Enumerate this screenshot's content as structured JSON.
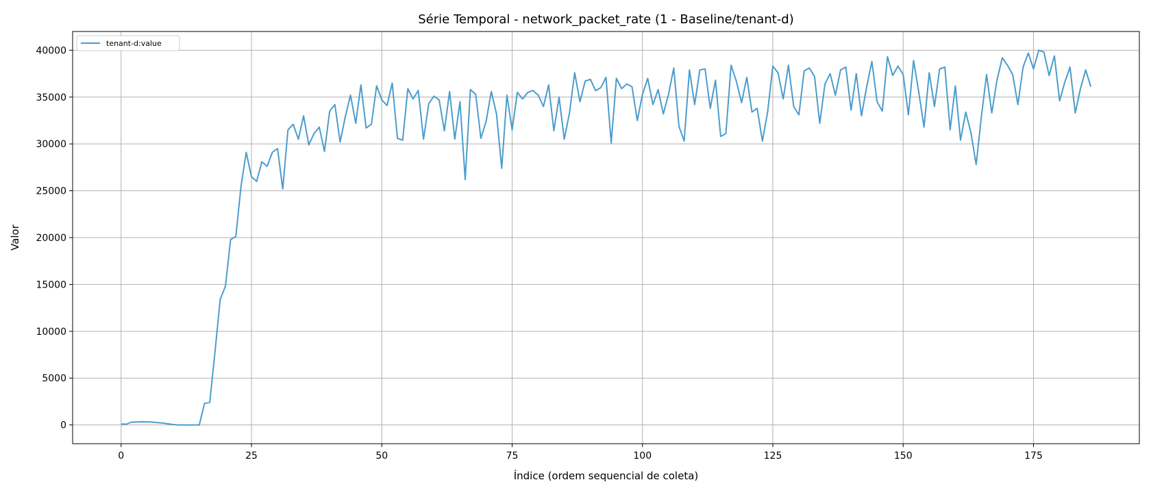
{
  "chart_data": {
    "type": "line",
    "title": "Série Temporal - network_packet_rate (1 - Baseline/tenant-d)",
    "xlabel": "Índice (ordem sequencial de coleta)",
    "ylabel": "Valor",
    "xlim": [
      -9.3,
      195.3
    ],
    "ylim": [
      -2000,
      42000
    ],
    "xticks": [
      0,
      25,
      50,
      75,
      100,
      125,
      150,
      175
    ],
    "yticks": [
      0,
      5000,
      10000,
      15000,
      20000,
      25000,
      30000,
      35000,
      40000
    ],
    "grid": true,
    "legend_position": "top-left",
    "colors": {
      "line": "#4a9ccc",
      "grid": "#b0b0b0"
    },
    "series": [
      {
        "name": "tenant-d:value",
        "x": [
          0,
          1,
          2,
          3,
          4,
          5,
          6,
          7,
          8,
          9,
          10,
          11,
          12,
          13,
          14,
          15,
          16,
          17,
          18,
          19,
          20,
          21,
          22,
          23,
          24,
          25,
          26,
          27,
          28,
          29,
          30,
          31,
          32,
          33,
          34,
          35,
          36,
          37,
          38,
          39,
          40,
          41,
          42,
          43,
          44,
          45,
          46,
          47,
          48,
          49,
          50,
          51,
          52,
          53,
          54,
          55,
          56,
          57,
          58,
          59,
          60,
          61,
          62,
          63,
          64,
          65,
          66,
          67,
          68,
          69,
          70,
          71,
          72,
          73,
          74,
          75,
          76,
          77,
          78,
          79,
          80,
          81,
          82,
          83,
          84,
          85,
          86,
          87,
          88,
          89,
          90,
          91,
          92,
          93,
          94,
          95,
          96,
          97,
          98,
          99,
          100,
          101,
          102,
          103,
          104,
          105,
          106,
          107,
          108,
          109,
          110,
          111,
          112,
          113,
          114,
          115,
          116,
          117,
          118,
          119,
          120,
          121,
          122,
          123,
          124,
          125,
          126,
          127,
          128,
          129,
          130,
          131,
          132,
          133,
          134,
          135,
          136,
          137,
          138,
          139,
          140,
          141,
          142,
          143,
          144,
          145,
          146,
          147,
          148,
          149,
          150,
          151,
          152,
          153,
          154,
          155,
          156,
          157,
          158,
          159,
          160,
          161,
          162,
          163,
          164,
          165,
          166,
          167,
          168,
          169,
          170,
          171,
          172,
          173,
          174,
          175,
          176,
          177,
          178,
          179,
          180,
          181,
          182,
          183,
          184,
          185,
          186
        ],
        "values": [
          100,
          80,
          300,
          320,
          340,
          330,
          300,
          250,
          200,
          120,
          50,
          0,
          0,
          0,
          0,
          0,
          2300,
          2400,
          7800,
          13400,
          14800,
          19800,
          20100,
          25500,
          29100,
          26500,
          26000,
          28100,
          27600,
          29100,
          29500,
          25200,
          31500,
          32100,
          30500,
          33000,
          29900,
          31100,
          31800,
          29200,
          33500,
          34200,
          30200,
          32900,
          35200,
          32200,
          36300,
          31700,
          32100,
          36200,
          34700,
          34100,
          36500,
          30600,
          30400,
          35900,
          34800,
          35700,
          30500,
          34300,
          35100,
          34700,
          31400,
          35600,
          30500,
          34500,
          26200,
          35800,
          35300,
          30600,
          32400,
          35600,
          33200,
          27400,
          35200,
          31500,
          35500,
          34800,
          35500,
          35700,
          35200,
          34000,
          36300,
          31400,
          35000,
          30500,
          33300,
          37600,
          34500,
          36700,
          36900,
          35700,
          36000,
          37100,
          30100,
          37000,
          35900,
          36400,
          36100,
          32500,
          35300,
          37000,
          34200,
          35800,
          33200,
          35300,
          38100,
          31900,
          30300,
          37900,
          34200,
          37900,
          38000,
          33800,
          36800,
          30800,
          31100,
          38400,
          36700,
          34400,
          37100,
          33400,
          33800,
          30300,
          33400,
          38300,
          37600,
          34800,
          38400,
          34000,
          33100,
          37800,
          38100,
          37200,
          32200,
          36400,
          37500,
          35200,
          37900,
          38200,
          33600,
          37500,
          33000,
          36100,
          38800,
          34500,
          33500,
          39300,
          37300,
          38300,
          37400,
          33100,
          38900,
          35500,
          31800,
          37600,
          34000,
          38000,
          38200,
          31500,
          36200,
          30400,
          33400,
          31200,
          27800,
          32900,
          37400,
          33300,
          36800,
          39200,
          38400,
          37400,
          34200,
          38200,
          39700,
          38000,
          40000,
          39800,
          37300,
          39400,
          34600,
          36600,
          38200,
          33300,
          35900,
          37900,
          36100
        ]
      }
    ]
  }
}
